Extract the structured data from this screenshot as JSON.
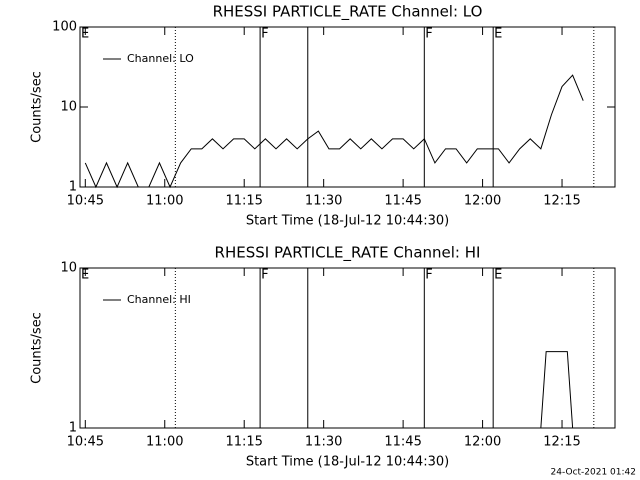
{
  "chart_data": [
    {
      "type": "line",
      "title": "RHESSI PARTICLE_RATE Channel: LO",
      "xlabel": "Start Time (18-Jul-12 10:44:30)",
      "ylabel": "Counts/sec",
      "log_y": true,
      "legend": "upper-left",
      "xlim": [
        "10:44",
        "12:25"
      ],
      "ylim": [
        1,
        100
      ],
      "yticks": [
        1,
        10,
        100
      ],
      "xticks": [
        "10:45",
        "11:00",
        "11:15",
        "11:30",
        "11:45",
        "12:00",
        "12:15"
      ],
      "x": [
        "10:45",
        "10:47",
        "10:49",
        "10:51",
        "10:53",
        "10:55",
        "10:57",
        "10:59",
        "11:01",
        "11:03",
        "11:05",
        "11:07",
        "11:09",
        "11:11",
        "11:13",
        "11:15",
        "11:17",
        "11:19",
        "11:21",
        "11:23",
        "11:25",
        "11:27",
        "11:29",
        "11:31",
        "11:33",
        "11:35",
        "11:37",
        "11:39",
        "11:41",
        "11:43",
        "11:45",
        "11:47",
        "11:49",
        "11:51",
        "11:53",
        "11:55",
        "11:57",
        "11:59",
        "12:01",
        "12:03",
        "12:05",
        "12:07",
        "12:09",
        "12:11",
        "12:13",
        "12:15",
        "12:17",
        "12:19"
      ],
      "series": [
        {
          "name": "Channel: LO",
          "color": "#000000",
          "values": [
            2,
            1,
            2,
            1,
            2,
            1,
            1,
            2,
            1,
            2,
            3,
            3,
            4,
            3,
            4,
            4,
            3,
            4,
            3,
            4,
            3,
            4,
            5,
            3,
            3,
            4,
            3,
            4,
            3,
            4,
            4,
            3,
            4,
            2,
            3,
            3,
            2,
            3,
            3,
            3,
            2,
            3,
            4,
            3,
            8,
            18,
            25,
            12
          ]
        }
      ],
      "events": [
        {
          "x": "10:44",
          "label": "E"
        },
        {
          "x": "11:02",
          "style": "dotted"
        },
        {
          "x": "11:18",
          "style": "solid",
          "label": "F"
        },
        {
          "x": "11:27",
          "style": "solid"
        },
        {
          "x": "11:49",
          "style": "solid",
          "label": "F"
        },
        {
          "x": "12:02",
          "style": "solid",
          "label": "E"
        },
        {
          "x": "12:21",
          "style": "dotted"
        }
      ]
    },
    {
      "type": "line",
      "title": "RHESSI PARTICLE_RATE Channel: HI",
      "xlabel": "Start Time (18-Jul-12 10:44:30)",
      "ylabel": "Counts/sec",
      "log_y": true,
      "legend": "upper-left",
      "xlim": [
        "10:44",
        "12:25"
      ],
      "ylim": [
        1,
        10
      ],
      "yticks": [
        1,
        10
      ],
      "xticks": [
        "10:45",
        "11:00",
        "11:15",
        "11:30",
        "11:45",
        "12:00",
        "12:15"
      ],
      "x": [
        "12:11",
        "12:12",
        "12:13",
        "12:14",
        "12:15",
        "12:16",
        "12:17"
      ],
      "series": [
        {
          "name": "Channel: HI",
          "color": "#000000",
          "values": [
            1,
            3,
            3,
            3,
            3,
            3,
            1
          ]
        }
      ],
      "events": [
        {
          "x": "10:44",
          "label": "E"
        },
        {
          "x": "11:02",
          "style": "dotted"
        },
        {
          "x": "11:18",
          "style": "solid",
          "label": "F"
        },
        {
          "x": "11:27",
          "style": "solid"
        },
        {
          "x": "11:49",
          "style": "solid",
          "label": "F"
        },
        {
          "x": "12:02",
          "style": "solid",
          "label": "E"
        },
        {
          "x": "12:21",
          "style": "dotted"
        }
      ]
    }
  ],
  "footer": "24-Oct-2021 01:42"
}
